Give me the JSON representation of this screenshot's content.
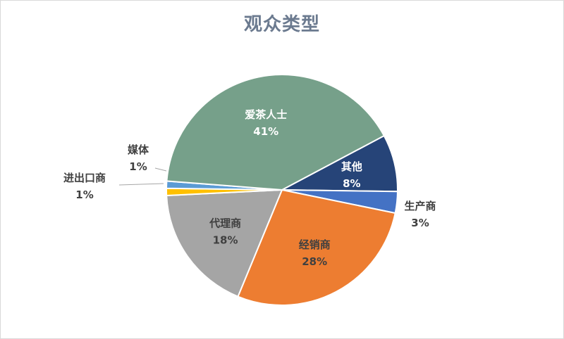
{
  "chart_data": {
    "type": "pie",
    "title": "观众类型",
    "start": "top",
    "direction": "clockwise",
    "slices": [
      {
        "name": "其他",
        "value": 8,
        "label": "8%",
        "color": "#264478",
        "label_color": "#ffffff",
        "label_position": "inside"
      },
      {
        "name": "生产商",
        "value": 3,
        "label": "3%",
        "color": "#4472c4",
        "label_color": "#404040",
        "label_position": "outside"
      },
      {
        "name": "经销商",
        "value": 28,
        "label": "28%",
        "color": "#ed7d31",
        "label_color": "#404040",
        "label_position": "inside"
      },
      {
        "name": "代理商",
        "value": 18,
        "label": "18%",
        "color": "#a5a5a5",
        "label_color": "#404040",
        "label_position": "inside"
      },
      {
        "name": "进出口商",
        "value": 1,
        "label": "1%",
        "color": "#ffc000",
        "label_color": "#404040",
        "label_position": "outside"
      },
      {
        "name": "媒体",
        "value": 1,
        "label": "1%",
        "color": "#5b9bd5",
        "label_color": "#404040",
        "label_position": "outside"
      },
      {
        "name": "爱茶人士",
        "value": 41,
        "label": "41%",
        "color": "#76a08a",
        "label_color": "#ffffff",
        "label_position": "inside"
      }
    ]
  }
}
